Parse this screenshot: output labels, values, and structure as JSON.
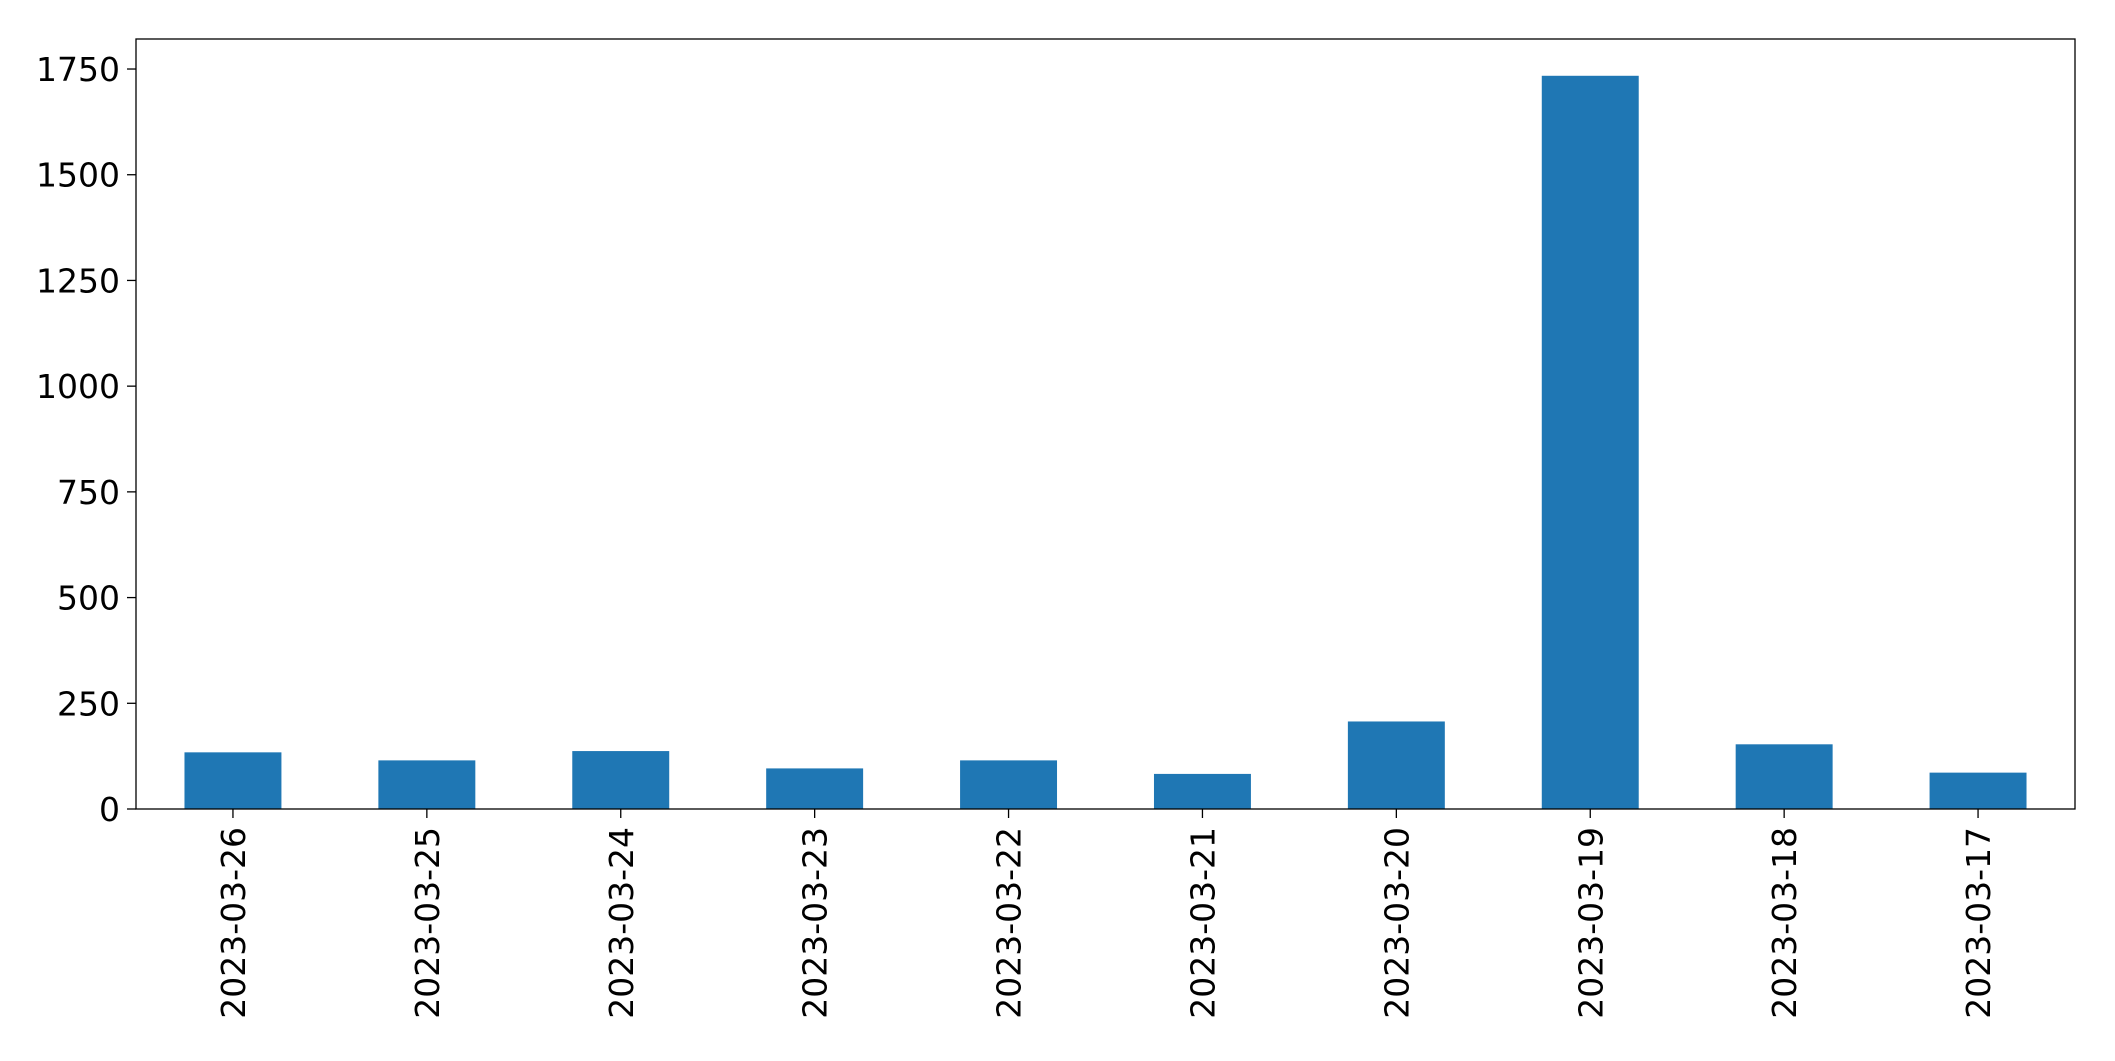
{
  "chart_data": {
    "type": "bar",
    "categories": [
      "2023-03-26",
      "2023-03-25",
      "2023-03-24",
      "2023-03-23",
      "2023-03-22",
      "2023-03-21",
      "2023-03-20",
      "2023-03-19",
      "2023-03-18",
      "2023-03-17"
    ],
    "values": [
      134,
      115,
      137,
      96,
      115,
      83,
      207,
      1734,
      153,
      86
    ],
    "color": "#1f77b4",
    "ylim": [
      0,
      1821
    ],
    "yticks": [
      0,
      250,
      500,
      750,
      1000,
      1250,
      1500,
      1750
    ],
    "grid": false
  }
}
